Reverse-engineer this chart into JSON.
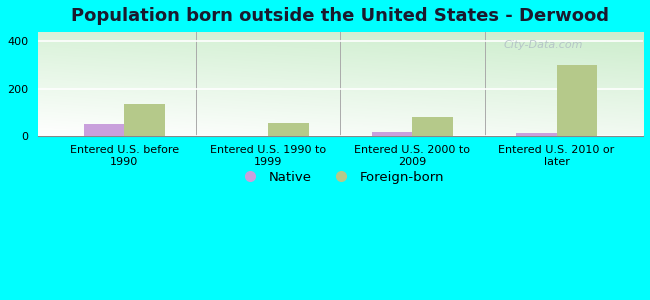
{
  "title": "Population born outside the United States - Derwood",
  "categories": [
    "Entered U.S. before\n1990",
    "Entered U.S. 1990 to\n1999",
    "Entered U.S. 2000 to\n2009",
    "Entered U.S. 2010 or\nlater"
  ],
  "native_values": [
    50,
    0,
    15,
    10
  ],
  "foreign_values": [
    135,
    55,
    80,
    300
  ],
  "native_color": "#c9a0dc",
  "foreign_color": "#b5c98a",
  "background_color": "#00ffff",
  "ylim": [
    0,
    440
  ],
  "yticks": [
    0,
    200,
    400
  ],
  "bar_width": 0.28,
  "legend_labels": [
    "Native",
    "Foreign-born"
  ],
  "title_fontsize": 13,
  "tick_fontsize": 8,
  "legend_fontsize": 9.5,
  "watermark": "City-Data.com"
}
